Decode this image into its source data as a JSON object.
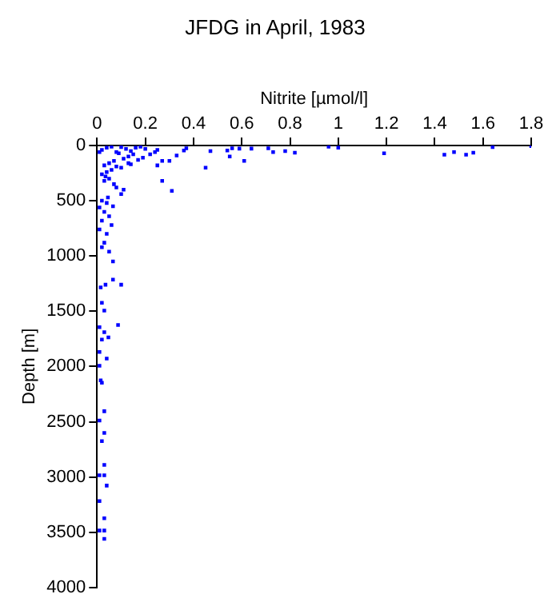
{
  "chart_data": {
    "type": "scatter",
    "title": "JFDG in April, 1983",
    "xlabel": "Nitrite [µmol/l]",
    "ylabel": "Depth [m]",
    "xlim": [
      0,
      1.8
    ],
    "xticks": [
      0,
      0.2,
      0.4,
      0.6,
      0.8,
      1,
      1.2,
      1.4,
      1.6,
      1.8
    ],
    "ylim": [
      4000,
      0
    ],
    "yticks": [
      0,
      500,
      1000,
      1500,
      2000,
      2500,
      3000,
      3500,
      4000
    ],
    "grid": false,
    "legend": false,
    "marker": "square",
    "series": [
      {
        "color": "#0000ff",
        "x": [
          0.96,
          1.0,
          1.19,
          1.44,
          1.48,
          1.53,
          1.56,
          1.64,
          1.8,
          0.82,
          0.78,
          0.73,
          0.71,
          0.64,
          0.59,
          0.56,
          0.54,
          0.61,
          0.55,
          0.47,
          0.45,
          0.36,
          0.37,
          0.31,
          0.27,
          0.3,
          0.27,
          0.33,
          0.25,
          0.2,
          0.18,
          0.16,
          0.14,
          0.12,
          0.1,
          0.08,
          0.06,
          0.04,
          0.02,
          0.01,
          0.15,
          0.13,
          0.11,
          0.09,
          0.07,
          0.05,
          0.03,
          0.17,
          0.19,
          0.22,
          0.24,
          0.14,
          0.1,
          0.06,
          0.04,
          0.02,
          0.08,
          0.05,
          0.03,
          0.07,
          0.035,
          0.08,
          0.11,
          0.13,
          0.1,
          0.25,
          0.066,
          0.045,
          0.02,
          0.04,
          0.01,
          0.03,
          0.05,
          0.02,
          0.06,
          0.01,
          0.04,
          0.03,
          0.02,
          0.05,
          0.066,
          0.1,
          0.066,
          0.035,
          0.015,
          0.02,
          0.03,
          0.087,
          0.01,
          0.03,
          0.047,
          0.02,
          0.01,
          0.04,
          0.01,
          0.015,
          0.02,
          0.03,
          0.01,
          0.03,
          0.02,
          0.03,
          0.01,
          0.03,
          0.04,
          0.01,
          0.03,
          0.01,
          0.03,
          0.03
        ],
        "values": [
          10,
          20,
          70,
          84,
          60,
          84,
          65,
          14,
          5,
          65,
          50,
          60,
          25,
          28,
          28,
          25,
          45,
          140,
          100,
          50,
          200,
          45,
          25,
          410,
          320,
          140,
          140,
          90,
          40,
          30,
          10,
          20,
          50,
          30,
          15,
          60,
          10,
          20,
          40,
          60,
          80,
          100,
          120,
          70,
          140,
          160,
          180,
          130,
          110,
          80,
          60,
          170,
          200,
          220,
          240,
          260,
          190,
          300,
          320,
          350,
          280,
          380,
          400,
          160,
          440,
          180,
          550,
          470,
          500,
          520,
          560,
          600,
          640,
          680,
          720,
          760,
          800,
          880,
          920,
          960,
          1050,
          1260,
          1214,
          1260,
          1284,
          1424,
          1494,
          1625,
          1644,
          1690,
          1737,
          1756,
          1868,
          1929,
          1994,
          2125,
          2148,
          2405,
          2489,
          2601,
          2676,
          2891,
          2985,
          2985,
          3078,
          3218,
          3373,
          3485,
          3485,
          3560
        ]
      }
    ]
  }
}
